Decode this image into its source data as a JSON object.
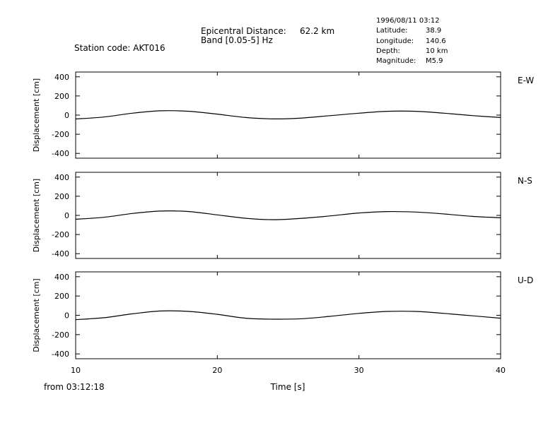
{
  "header": {
    "station_label": "Station code: AKT016",
    "epicentral_label": "Epicentral Distance:",
    "epicentral_value": "62.2 km",
    "band_label": "Band [0.05-5] Hz",
    "datetime": "1996/08/11 03:12",
    "latitude_label": "Latitude:",
    "latitude_value": "38.9",
    "longitude_label": "Longitude:",
    "longitude_value": "140.6",
    "depth_label": "Depth:",
    "depth_value": "10 km",
    "magnitude_label": "Magnitude:",
    "magnitude_value": "M5.9"
  },
  "footer": {
    "start_time": "from 03:12:18",
    "xlabel": "Time [s]"
  },
  "colors": {
    "trace": "#000000",
    "axes": "#000000",
    "background": "#ffffff"
  },
  "chart_data": [
    {
      "type": "line",
      "component": "E-W",
      "ylabel": "Displacement [cm]",
      "xlim": [
        10,
        40
      ],
      "ylim": [
        -450,
        450
      ],
      "x_ticks": [
        "10",
        "20",
        "30",
        "40"
      ],
      "y_ticks": [
        "400",
        "200",
        "0",
        "-200",
        "-400"
      ],
      "series": [
        {
          "x": [
            10,
            12,
            14,
            16,
            18,
            20,
            22,
            24,
            26,
            28,
            30,
            32,
            34,
            36,
            38,
            40
          ],
          "y": [
            -40,
            -20,
            20,
            45,
            40,
            10,
            -25,
            -40,
            -30,
            -5,
            20,
            40,
            40,
            20,
            -5,
            -25
          ]
        }
      ]
    },
    {
      "type": "line",
      "component": "N-S",
      "ylabel": "Displacement [cm]",
      "xlim": [
        10,
        40
      ],
      "ylim": [
        -450,
        450
      ],
      "x_ticks": [
        "10",
        "20",
        "30",
        "40"
      ],
      "y_ticks": [
        "400",
        "200",
        "0",
        "-200",
        "-400"
      ],
      "series": [
        {
          "x": [
            10,
            12,
            14,
            16,
            18,
            20,
            22,
            24,
            26,
            28,
            30,
            32,
            34,
            36,
            38,
            40
          ],
          "y": [
            -40,
            -20,
            20,
            45,
            40,
            5,
            -30,
            -45,
            -30,
            -5,
            25,
            40,
            35,
            15,
            -10,
            -25
          ]
        }
      ]
    },
    {
      "type": "line",
      "component": "U-D",
      "ylabel": "Displacement [cm]",
      "xlim": [
        10,
        40
      ],
      "ylim": [
        -450,
        450
      ],
      "x_ticks": [
        "10",
        "20",
        "30",
        "40"
      ],
      "y_ticks": [
        "400",
        "200",
        "0",
        "-200",
        "-400"
      ],
      "series": [
        {
          "x": [
            10,
            12,
            14,
            16,
            18,
            20,
            22,
            24,
            26,
            28,
            30,
            32,
            34,
            36,
            38,
            40
          ],
          "y": [
            -45,
            -25,
            15,
            45,
            40,
            10,
            -30,
            -40,
            -35,
            -10,
            20,
            40,
            40,
            20,
            -5,
            -30
          ]
        }
      ]
    }
  ]
}
